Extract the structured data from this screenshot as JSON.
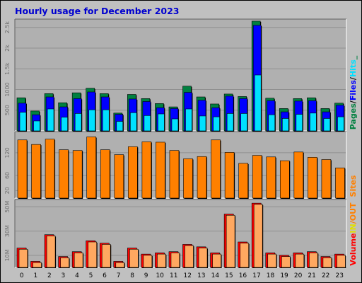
{
  "title": "Hourly usage for December 2023",
  "chart_data": [
    {
      "type": "bar",
      "panel": "hits-files-pages",
      "categories": [
        "0",
        "1",
        "2",
        "3",
        "4",
        "5",
        "6",
        "7",
        "8",
        "9",
        "10",
        "11",
        "12",
        "13",
        "14",
        "15",
        "16",
        "17",
        "18",
        "19",
        "20",
        "21",
        "22",
        "23"
      ],
      "ylim": [
        0,
        2700
      ],
      "yticks": [
        500,
        1000,
        1500,
        2000,
        2500
      ],
      "ytick_labels": [
        "500",
        "1000",
        "1.5k",
        "2k",
        "2.5k"
      ],
      "series": [
        {
          "name": "Hits",
          "color": "#00e0ff",
          "values": [
            450,
            240,
            530,
            330,
            420,
            510,
            510,
            230,
            440,
            370,
            410,
            290,
            530,
            360,
            340,
            420,
            420,
            1350,
            390,
            300,
            400,
            430,
            300,
            340
          ]
        },
        {
          "name": "Files",
          "color": "#0000ff",
          "values": [
            670,
            390,
            820,
            580,
            780,
            940,
            820,
            400,
            770,
            710,
            560,
            540,
            930,
            740,
            560,
            840,
            780,
            2550,
            730,
            460,
            720,
            730,
            460,
            620
          ]
        },
        {
          "name": "Pages",
          "color": "#008040",
          "values": [
            800,
            480,
            900,
            680,
            920,
            1030,
            900,
            430,
            880,
            780,
            660,
            580,
            1080,
            820,
            650,
            890,
            830,
            2650,
            790,
            540,
            780,
            800,
            540,
            670
          ]
        }
      ],
      "legend": [
        "Pages",
        "/",
        "Files",
        "/",
        "Hits",
        "_"
      ]
    },
    {
      "type": "bar",
      "panel": "sites",
      "categories": [
        "0",
        "1",
        "2",
        "3",
        "4",
        "5",
        "6",
        "7",
        "8",
        "9",
        "10",
        "11",
        "12",
        "13",
        "14",
        "15",
        "16",
        "17",
        "18",
        "19",
        "20",
        "21",
        "22",
        "23"
      ],
      "ylim": [
        0,
        176
      ],
      "yticks": [
        20,
        60,
        120
      ],
      "ytick_labels": [
        "20",
        "60",
        "120"
      ],
      "series": [
        {
          "name": "Sites",
          "color": "#ff8000",
          "values": [
            154,
            142,
            156,
            128,
            126,
            162,
            128,
            115,
            136,
            149,
            148,
            126,
            104,
            110,
            154,
            121,
            92,
            113,
            109,
            99,
            122,
            108,
            102,
            80
          ]
        }
      ],
      "legend": [
        "Sites"
      ]
    },
    {
      "type": "bar",
      "panel": "volume",
      "categories": [
        "0",
        "1",
        "2",
        "3",
        "4",
        "5",
        "6",
        "7",
        "8",
        "9",
        "10",
        "11",
        "12",
        "13",
        "14",
        "15",
        "16",
        "17",
        "18",
        "19",
        "20",
        "21",
        "22",
        "23"
      ],
      "ylim": [
        0,
        56
      ],
      "yticks": [
        10,
        30,
        50
      ],
      "ytick_labels": [
        "10M",
        "30M",
        "50M"
      ],
      "series": [
        {
          "name": "IN",
          "color": "#ff0000",
          "values": [
            16,
            5,
            27,
            9,
            13,
            22,
            20,
            5,
            16,
            11,
            12,
            13,
            19,
            17,
            12,
            44,
            21,
            53,
            12,
            10,
            12,
            13,
            9,
            11
          ]
        },
        {
          "name": "OUT",
          "color": "#ffa860",
          "values": [
            15,
            4,
            26,
            8,
            12,
            21,
            19,
            4,
            15,
            10,
            11,
            12,
            18,
            16,
            11,
            43,
            20,
            52,
            11,
            9,
            11,
            12,
            8,
            10
          ]
        }
      ],
      "legend": [
        "Volume",
        "IN",
        "/",
        "OUT"
      ]
    }
  ],
  "colors": {
    "background": "#c0c0c0",
    "plot_background": "#b0b0b0",
    "title": "#0000d0",
    "hits": "#00e0ff",
    "files": "#0000ff",
    "pages": "#008040",
    "sites": "#ff8000",
    "volume_in": "#ff0000",
    "volume_out": "#ffa860",
    "in_legend": "#e0e000",
    "slash_legend": "#ff8000"
  }
}
